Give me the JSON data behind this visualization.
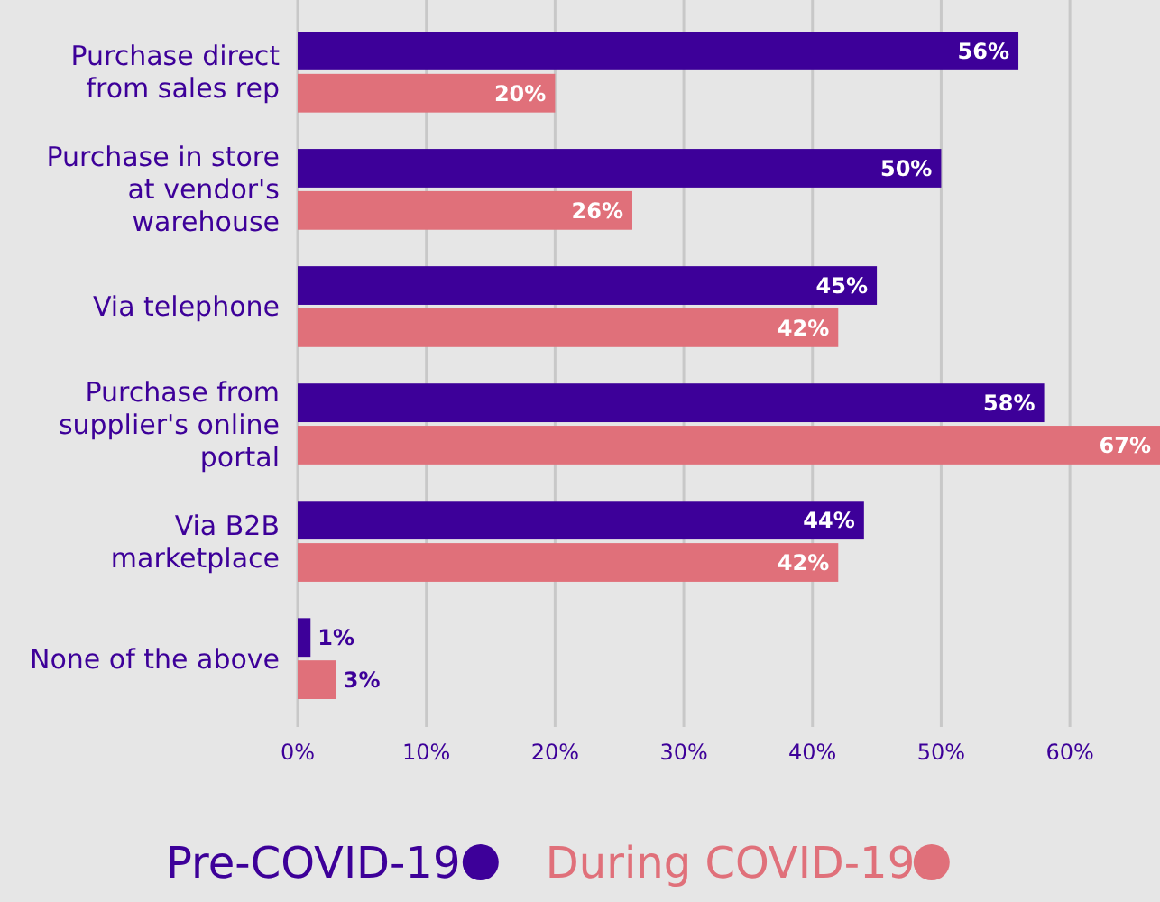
{
  "chart_data": {
    "type": "bar",
    "orientation": "horizontal",
    "categories": [
      "Purchase direct from sales rep",
      "Purchase in store at vendor's warehouse",
      "Via telephone",
      "Purchase from supplier's online portal",
      "Via B2B marketplace",
      "None of the above"
    ],
    "series": [
      {
        "name": "Pre-COVID-19",
        "color": "#3d0099",
        "values": [
          56,
          50,
          45,
          58,
          44,
          1
        ],
        "value_labels": [
          "56%",
          "50%",
          "45%",
          "58%",
          "44%",
          "1%"
        ]
      },
      {
        "name": "During COVID-19",
        "color": "#e0707a",
        "values": [
          20,
          26,
          42,
          67,
          42,
          3
        ],
        "value_labels": [
          "20%",
          "26%",
          "42%",
          "67%",
          "42%",
          "3%"
        ]
      }
    ],
    "xlim": [
      0,
      67
    ],
    "xticks": [
      {
        "value": 0,
        "label": "0%"
      },
      {
        "value": 10,
        "label": "10%"
      },
      {
        "value": 20,
        "label": "20%"
      },
      {
        "value": 30,
        "label": "30%"
      },
      {
        "value": 40,
        "label": "40%"
      },
      {
        "value": 50,
        "label": "50%"
      },
      {
        "value": 60,
        "label": "60%"
      }
    ],
    "grid": "x",
    "legend": "bottom"
  }
}
